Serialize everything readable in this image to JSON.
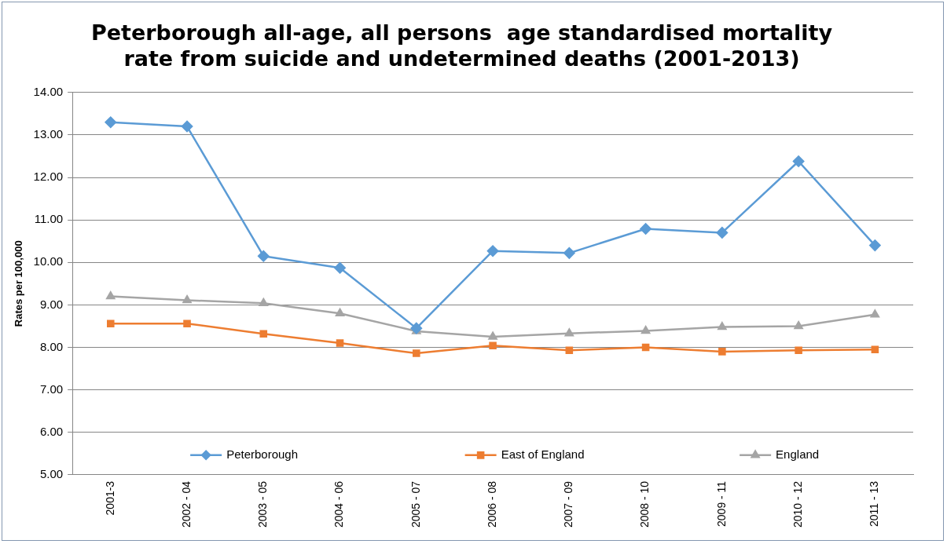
{
  "chart_data": {
    "type": "line",
    "title": [
      "Peterborough all-age, all persons  age standardised mortality",
      "rate from suicide and undetermined deaths (2001-2013)"
    ],
    "ylabel": "Rates per 100,000",
    "categories": [
      "2001-3",
      "2002 - 04",
      "2003 - 05",
      "2004 - 06",
      "2005 - 07",
      "2006 - 08",
      "2007 - 09",
      "2008 - 10",
      "2009 - 11",
      "2010 - 12",
      "2011 - 13"
    ],
    "series": [
      {
        "name": "Peterborough",
        "color": "#5b9bd5",
        "marker": "diamond",
        "values": [
          13.3,
          13.2,
          10.15,
          9.87,
          8.45,
          10.27,
          10.22,
          10.79,
          10.7,
          12.38,
          10.4
        ]
      },
      {
        "name": "East of England",
        "color": "#ed7d31",
        "marker": "square",
        "values": [
          8.56,
          8.56,
          8.32,
          8.1,
          7.86,
          8.04,
          7.93,
          8.0,
          7.9,
          7.93,
          7.95
        ]
      },
      {
        "name": "England",
        "color": "#a5a5a5",
        "marker": "triangle",
        "values": [
          9.2,
          9.11,
          9.04,
          8.8,
          8.38,
          8.25,
          8.33,
          8.39,
          8.48,
          8.5,
          8.77
        ]
      }
    ],
    "ylim": [
      5,
      14
    ],
    "yticks": [
      {
        "value": 5,
        "label": "5.00"
      },
      {
        "value": 6,
        "label": "6.00"
      },
      {
        "value": 7,
        "label": "7.00"
      },
      {
        "value": 8,
        "label": "8.00"
      },
      {
        "value": 9,
        "label": "9.00"
      },
      {
        "value": 10,
        "label": "10.00"
      },
      {
        "value": 11,
        "label": "11.00"
      },
      {
        "value": 12,
        "label": "12.00"
      },
      {
        "value": 13,
        "label": "13.00"
      },
      {
        "value": 14,
        "label": "14.00"
      }
    ],
    "grid": "y",
    "legend": "bottom"
  }
}
